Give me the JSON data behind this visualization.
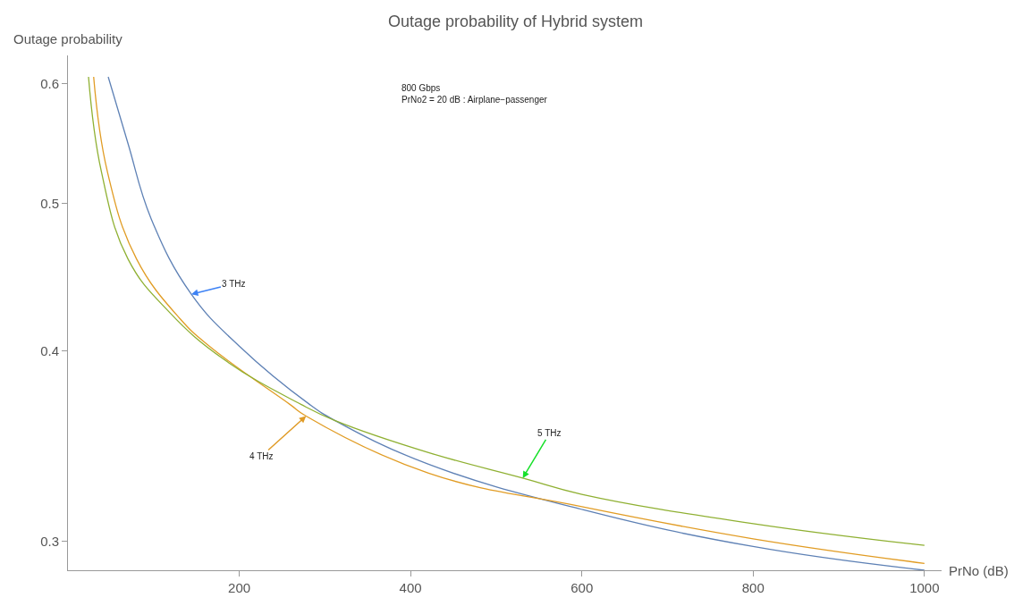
{
  "chart_data": {
    "type": "line",
    "title": "Outage probability of Hybrid system",
    "xlabel": "PrNo (dB)",
    "ylabel": "Outage probability",
    "log": "y",
    "xlim": [
      0,
      1020
    ],
    "ylim": [
      0.287,
      0.626
    ],
    "xticks": [
      200,
      400,
      600,
      800,
      1000
    ],
    "yticks": [
      0.3,
      0.4,
      0.5,
      0.6
    ],
    "marker": "none",
    "line_style": "solid",
    "series": [
      {
        "color": "#5e81b5",
        "x": [
          47,
          70,
          97,
          144,
          200,
          282,
          312,
          421,
          602,
          800,
          1000
        ],
        "values": [
          0.606,
          0.548,
          0.489,
          0.436,
          0.403,
          0.369,
          0.36,
          0.337,
          0.3145,
          0.2975,
          0.287
        ]
      },
      {
        "color": "#e19c24",
        "x": [
          30,
          46,
          80,
          131,
          165,
          259,
          278,
          421,
          600,
          800,
          1000
        ],
        "values": [
          0.606,
          0.525,
          0.46,
          0.42,
          0.403,
          0.369,
          0.3625,
          0.3325,
          0.316,
          0.301,
          0.29
        ]
      },
      {
        "color": "#8fb032",
        "x": [
          24,
          39,
          70,
          118,
          182,
          272,
          312,
          421,
          531,
          600,
          800,
          1000
        ],
        "values": [
          0.606,
          0.525,
          0.46,
          0.4245,
          0.395,
          0.369,
          0.36,
          0.343,
          0.33,
          0.322,
          0.308,
          0.298
        ]
      }
    ],
    "annotations": [
      "800 Gbps\nPrNo2 = 20 dB : Airplane−passenger",
      {
        "text": "3 THz",
        "x": 144,
        "y": 0.436
      },
      {
        "text": "4 THz",
        "x": 278,
        "y": 0.3625
      },
      {
        "text": "5 THz",
        "x": 531,
        "y": 0.33
      }
    ]
  }
}
